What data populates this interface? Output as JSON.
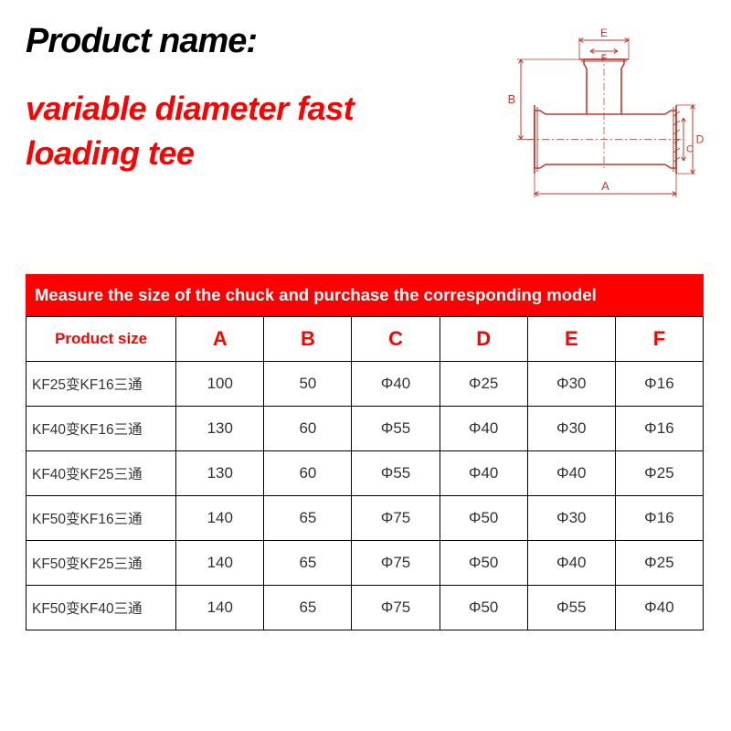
{
  "header": {
    "label": "Product name:",
    "title_line1": "variable diameter fast",
    "title_line2": "loading tee"
  },
  "diagram": {
    "labels": {
      "A": "A",
      "B": "B",
      "C": "C",
      "D": "D",
      "E": "E",
      "F": "F"
    },
    "stroke": "#c0392b",
    "stroke_width": 1.6
  },
  "table": {
    "banner": "Measure the size of the chuck and purchase the corresponding model",
    "head_first": "Product size",
    "columns": [
      "A",
      "B",
      "C",
      "D",
      "E",
      "F"
    ],
    "rows": [
      {
        "size": "KF25变KF16三通",
        "cells": [
          "100",
          "50",
          "Φ40",
          "Φ25",
          "Φ30",
          "Φ16"
        ]
      },
      {
        "size": "KF40变KF16三通",
        "cells": [
          "130",
          "60",
          "Φ55",
          "Φ40",
          "Φ30",
          "Φ16"
        ]
      },
      {
        "size": "KF40变KF25三通",
        "cells": [
          "130",
          "60",
          "Φ55",
          "Φ40",
          "Φ40",
          "Φ25"
        ]
      },
      {
        "size": "KF50变KF16三通",
        "cells": [
          "140",
          "65",
          "Φ75",
          "Φ50",
          "Φ30",
          "Φ16"
        ]
      },
      {
        "size": "KF50变KF25三通",
        "cells": [
          "140",
          "65",
          "Φ75",
          "Φ50",
          "Φ40",
          "Φ25"
        ]
      },
      {
        "size": "KF50变KF40三通",
        "cells": [
          "140",
          "65",
          "Φ75",
          "Φ50",
          "Φ55",
          "Φ40"
        ]
      }
    ],
    "header_text_color": "#ff0000",
    "border_color": "#000000",
    "cell_text_color": "#333333"
  }
}
